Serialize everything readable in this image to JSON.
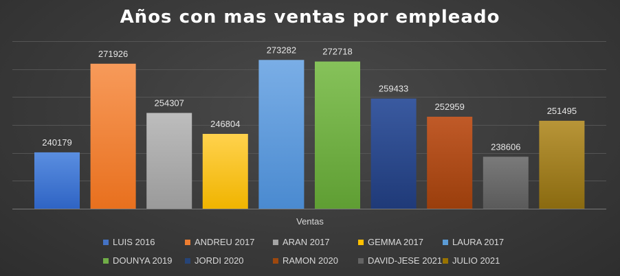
{
  "chart_data": {
    "type": "bar",
    "title": "Años con mas ventas por empleado",
    "xlabel": "Ventas",
    "ylabel": "",
    "ylim": [
      220000,
      280000
    ],
    "grid": true,
    "legend_position": "bottom",
    "series": [
      {
        "name": "LUIS 2016",
        "value": 240179,
        "color_top": "#5a8ee0",
        "color_bottom": "#2f64c4",
        "legend_color": "#4472c4"
      },
      {
        "name": "ANDREU 2017",
        "value": 271926,
        "color_top": "#f79a5a",
        "color_bottom": "#e8701e",
        "legend_color": "#ed7d31"
      },
      {
        "name": "ARAN 2017",
        "value": 254307,
        "color_top": "#bdbdbd",
        "color_bottom": "#9a9a9a",
        "legend_color": "#a5a5a5"
      },
      {
        "name": "GEMMA 2017",
        "value": 246804,
        "color_top": "#ffd24d",
        "color_bottom": "#f0b400",
        "legend_color": "#ffc000"
      },
      {
        "name": "LAURA 2017",
        "value": 273282,
        "color_top": "#7aaee6",
        "color_bottom": "#4a8ad0",
        "legend_color": "#5b9bd5"
      },
      {
        "name": "DOUNYA 2019",
        "value": 272718,
        "color_top": "#86c25a",
        "color_bottom": "#5f9e33",
        "legend_color": "#70ad47"
      },
      {
        "name": "JORDI 2020",
        "value": 259433,
        "color_top": "#3a5aa0",
        "color_bottom": "#1f3a78",
        "legend_color": "#264478"
      },
      {
        "name": "RAMON 2020",
        "value": 252959,
        "color_top": "#c05a28",
        "color_bottom": "#9a3e0c",
        "legend_color": "#9e480e"
      },
      {
        "name": "DAVID-JESE 2021",
        "value": 238606,
        "color_top": "#7a7a7a",
        "color_bottom": "#5a5a5a",
        "legend_color": "#636363"
      },
      {
        "name": "JULIO 2021",
        "value": 251495,
        "color_top": "#b89538",
        "color_bottom": "#8a6a10",
        "legend_color": "#997300"
      }
    ]
  }
}
